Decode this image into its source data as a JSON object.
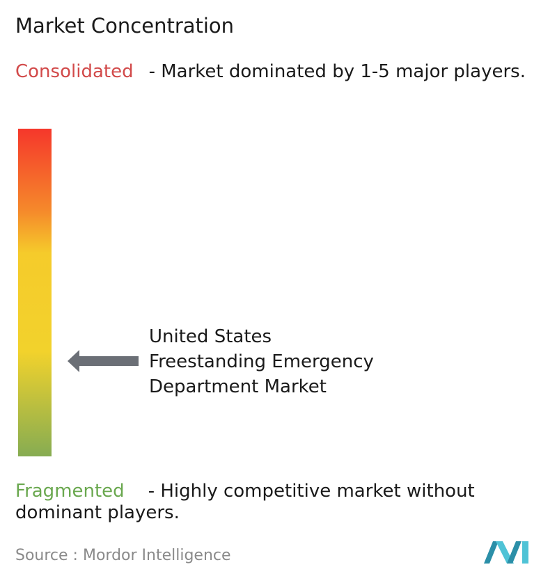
{
  "header": {
    "title": "Market Concentration"
  },
  "consolidated": {
    "label": "Consolidated",
    "description": "- Market dominated by 1-5 major players."
  },
  "market": {
    "lines": [
      "United States",
      "Freestanding Emergency",
      "Department Market"
    ]
  },
  "fragmented": {
    "label": "Fragmented",
    "description": "- Highly competitive market without dominant players."
  },
  "source": {
    "label": "Source :",
    "name": "Mordor Intelligence"
  }
}
